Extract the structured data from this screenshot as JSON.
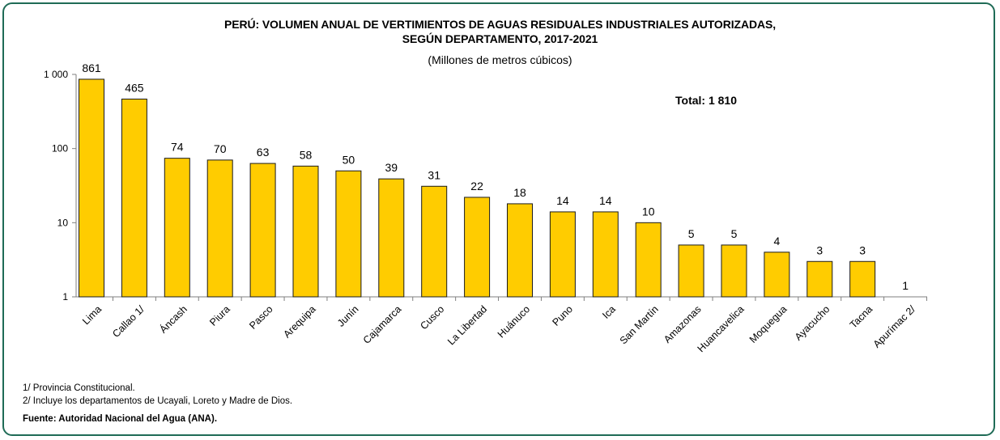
{
  "title_line1": "PERÚ: VOLUMEN ANUAL DE VERTIMIENTOS DE AGUAS RESIDUALES INDUSTRIALES AUTORIZADAS,",
  "title_line2": "SEGÚN DEPARTAMENTO, 2017-2021",
  "subtitle": "(Millones de metros cúbicos)",
  "total_label": "Total: 1 810",
  "footnote1": "1/ Provincia Constitucional.",
  "footnote2": "2/ Incluye los departamentos de Ucayali, Loreto y Madre de Dios.",
  "source": "Fuente: Autoridad Nacional del Agua (ANA).",
  "colors": {
    "bar": "#ffcc00",
    "bar_stroke": "#1a1a1a",
    "frame": "#1f6b56"
  },
  "chart_data": {
    "type": "bar",
    "yscale": "log",
    "ylim": [
      1,
      1000
    ],
    "yticks": [
      1,
      10,
      100,
      1000
    ],
    "ytick_labels": [
      "1",
      "10",
      "100",
      "1 000"
    ],
    "categories": [
      "Lima",
      "Callao 1/",
      "Áncash",
      "Piura",
      "Pasco",
      "Arequipa",
      "Junín",
      "Cajamarca",
      "Cusco",
      "La Libertad",
      "Huánuco",
      "Puno",
      "Ica",
      "San Martín",
      "Amazonas",
      "Huancavelica",
      "Moquegua",
      "Ayacucho",
      "Tacna",
      "Apurímac 2/"
    ],
    "values": [
      861,
      465,
      74,
      70,
      63,
      58,
      50,
      39,
      31,
      22,
      18,
      14,
      14,
      10,
      5,
      5,
      4,
      3,
      3,
      1
    ],
    "value_labels": [
      "861",
      "465",
      "74",
      "70",
      "63",
      "58",
      "50",
      "39",
      "31",
      "22",
      "18",
      "14",
      "14",
      "10",
      "5",
      "5",
      "4",
      "3",
      "3",
      "1"
    ],
    "grid": false,
    "legend": "none"
  }
}
